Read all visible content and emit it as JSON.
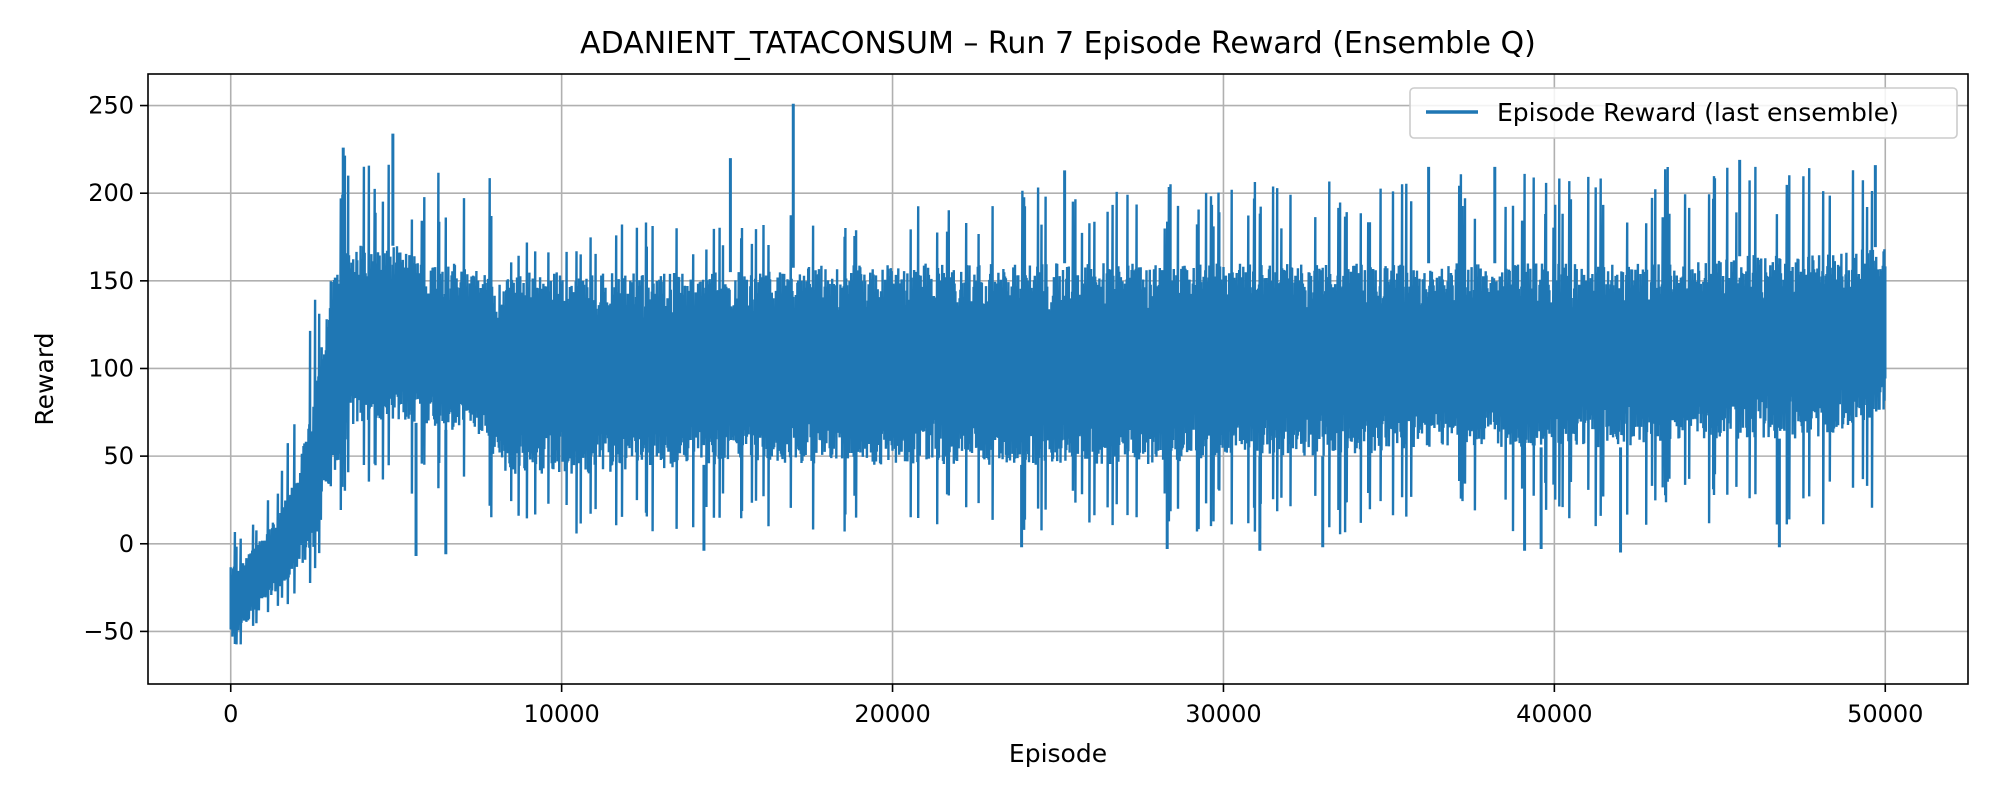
{
  "chart_data": {
    "type": "line",
    "title": "ADANIENT_TATACONSUM – Run 7 Episode Reward (Ensemble Q)",
    "xlabel": "Episode",
    "ylabel": "Reward",
    "xlim": [
      -2500,
      52500
    ],
    "ylim": [
      -80,
      268
    ],
    "xticks": [
      0,
      10000,
      20000,
      30000,
      40000,
      50000
    ],
    "yticks": [
      -50,
      0,
      50,
      100,
      150,
      200,
      250
    ],
    "grid": true,
    "legend_position": "top-right",
    "color": "#1f77b4",
    "series": [
      {
        "name": "Episode Reward (last ensemble)",
        "envelope": {
          "x": [
            0,
            200,
            500,
            1000,
            1500,
            2000,
            2500,
            3000,
            3500,
            4000,
            4500,
            5000,
            5500,
            6000,
            7000,
            7800,
            8000,
            9000,
            10000,
            12000,
            14000,
            16000,
            18000,
            20000,
            22000,
            24000,
            26000,
            28000,
            30000,
            32000,
            34000,
            36000,
            38000,
            40000,
            42000,
            44000,
            46000,
            48000,
            50000
          ],
          "upper": [
            12,
            5,
            10,
            20,
            45,
            75,
            140,
            200,
            225,
            220,
            210,
            235,
            200,
            215,
            210,
            218,
            160,
            175,
            175,
            185,
            180,
            185,
            195,
            190,
            200,
            205,
            200,
            205,
            210,
            205,
            210,
            205,
            215,
            210,
            215,
            215,
            215,
            215,
            215
          ],
          "lower": [
            -62,
            -60,
            -55,
            -45,
            -38,
            -30,
            -25,
            -15,
            20,
            25,
            25,
            30,
            20,
            25,
            20,
            20,
            5,
            5,
            5,
            5,
            5,
            10,
            5,
            10,
            10,
            5,
            10,
            5,
            5,
            5,
            5,
            10,
            5,
            10,
            5,
            10,
            10,
            10,
            20
          ],
          "core_upper": [
            -10,
            -15,
            -5,
            5,
            20,
            40,
            80,
            150,
            170,
            170,
            170,
            170,
            165,
            160,
            160,
            155,
            150,
            155,
            155,
            155,
            155,
            155,
            160,
            160,
            160,
            160,
            160,
            160,
            160,
            160,
            160,
            160,
            160,
            160,
            160,
            160,
            165,
            165,
            170
          ],
          "core_lower": [
            -55,
            -50,
            -45,
            -35,
            -25,
            -15,
            -5,
            30,
            60,
            70,
            70,
            70,
            70,
            65,
            65,
            60,
            40,
            40,
            40,
            40,
            45,
            45,
            45,
            45,
            45,
            45,
            45,
            45,
            50,
            50,
            50,
            55,
            55,
            55,
            55,
            60,
            60,
            60,
            75
          ]
        },
        "spikes": [
          {
            "x": 4900,
            "y": 234
          },
          {
            "x": 3400,
            "y": 226
          },
          {
            "x": 17000,
            "y": 251
          },
          {
            "x": 15100,
            "y": 220
          },
          {
            "x": 45600,
            "y": 219
          },
          {
            "x": 49700,
            "y": 216
          },
          {
            "x": 36200,
            "y": 215
          },
          {
            "x": 38200,
            "y": 215
          },
          {
            "x": 25200,
            "y": 213
          },
          {
            "x": 5600,
            "y": -7
          },
          {
            "x": 6500,
            "y": -6
          },
          {
            "x": 14300,
            "y": -4
          },
          {
            "x": 23900,
            "y": -2
          },
          {
            "x": 31100,
            "y": -4
          },
          {
            "x": 33000,
            "y": -2
          },
          {
            "x": 39100,
            "y": -4
          },
          {
            "x": 42000,
            "y": -5
          },
          {
            "x": 46800,
            "y": -2
          },
          {
            "x": 39600,
            "y": -3
          },
          {
            "x": 28300,
            "y": -3
          }
        ],
        "end_value": 100
      }
    ]
  }
}
